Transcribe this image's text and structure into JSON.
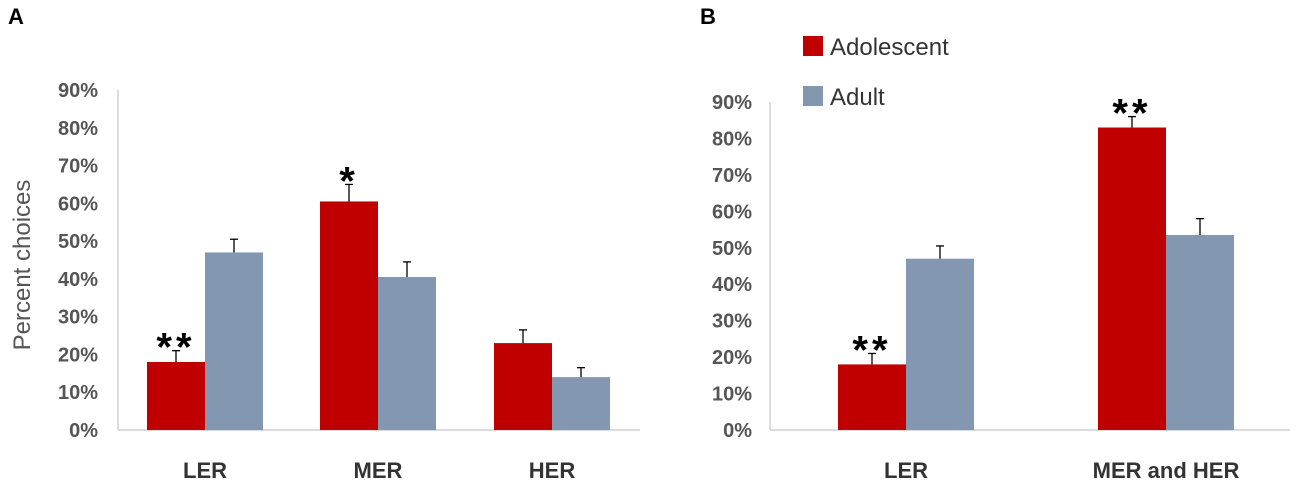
{
  "colors": {
    "adolescent": "#c00000",
    "adult": "#8497b0",
    "axis": "#d0d0d0",
    "errorbar": "#000000"
  },
  "legend": {
    "adolescent": "Adolescent",
    "adult": "Adult"
  },
  "chart_data": [
    {
      "panel_label": "A",
      "type": "bar",
      "ylabel": "Percent choices",
      "xlabel": "",
      "ylim": [
        0,
        90
      ],
      "yticks": [
        "0%",
        "10%",
        "20%",
        "30%",
        "40%",
        "50%",
        "60%",
        "70%",
        "80%",
        "90%"
      ],
      "categories": [
        "LER",
        "MER",
        "HER"
      ],
      "series": [
        {
          "name": "Adolescent",
          "values": [
            18,
            60.5,
            23
          ],
          "errors": [
            3,
            4.5,
            3.5
          ]
        },
        {
          "name": "Adult",
          "values": [
            47,
            40.5,
            14
          ],
          "errors": [
            3.5,
            4,
            2.5
          ]
        }
      ],
      "annotations": [
        {
          "text": "**",
          "category": 0,
          "series": 0
        },
        {
          "text": "*",
          "category": 1,
          "series": 0
        }
      ]
    },
    {
      "panel_label": "B",
      "type": "bar",
      "ylabel": "",
      "xlabel": "",
      "ylim": [
        0,
        90
      ],
      "yticks": [
        "0%",
        "10%",
        "20%",
        "30%",
        "40%",
        "50%",
        "60%",
        "70%",
        "80%",
        "90%"
      ],
      "categories": [
        "LER",
        "MER and HER"
      ],
      "series": [
        {
          "name": "Adolescent",
          "values": [
            18,
            83
          ],
          "errors": [
            3,
            3
          ]
        },
        {
          "name": "Adult",
          "values": [
            47,
            53.5
          ],
          "errors": [
            3.5,
            4.5
          ]
        }
      ],
      "annotations": [
        {
          "text": "**",
          "category": 0,
          "series": 0
        },
        {
          "text": "**",
          "category": 1,
          "series": 0
        }
      ]
    }
  ]
}
